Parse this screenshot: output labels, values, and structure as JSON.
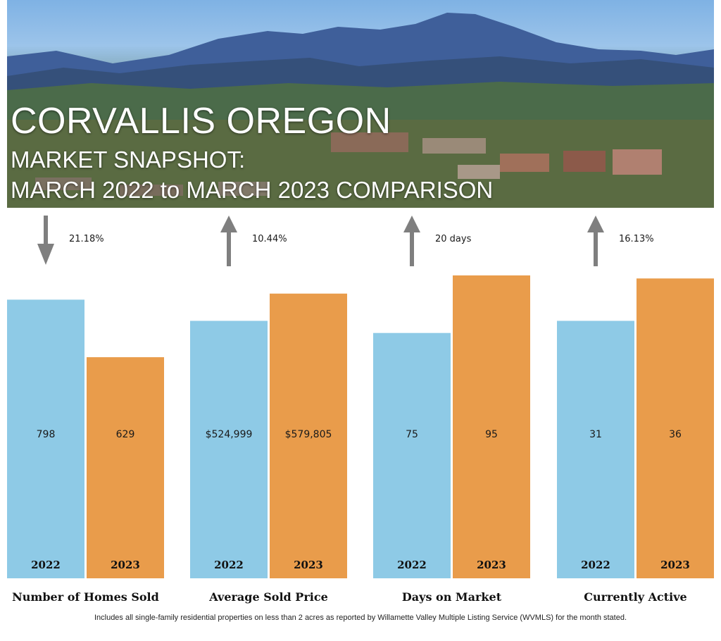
{
  "header": {
    "title": "CORVALLIS OREGON",
    "subtitle_line1": "MARKET SNAPSHOT:",
    "subtitle_line2": "MARCH 2022 to MARCH 2023 COMPARISON"
  },
  "colors": {
    "series_2022": "#8ecae6",
    "series_2023": "#e99c4b",
    "arrow": "#7f7f7f"
  },
  "chart_data": {
    "type": "bar",
    "categories": [
      "Number of Homes Sold",
      "Average Sold Price",
      "Days on Market",
      "Currently Active"
    ],
    "series": [
      {
        "name": "2022",
        "values": [
          "798",
          "$524,999",
          "75",
          "31"
        ],
        "relative_height": [
          0.92,
          0.85,
          0.81,
          0.85
        ]
      },
      {
        "name": "2023",
        "values": [
          "629",
          "$579,805",
          "95",
          "36"
        ],
        "relative_height": [
          0.73,
          0.94,
          1.0,
          0.99
        ]
      }
    ],
    "changes": [
      {
        "label": "21.18%",
        "direction": "down"
      },
      {
        "label": "10.44%",
        "direction": "up"
      },
      {
        "label": "20 days",
        "direction": "up"
      },
      {
        "label": "16.13%",
        "direction": "up"
      }
    ]
  },
  "footnote": "Includes all single-family residential properties on less than 2 acres as reported by Willamette Valley Multiple Listing Service (WVMLS) for the month stated."
}
